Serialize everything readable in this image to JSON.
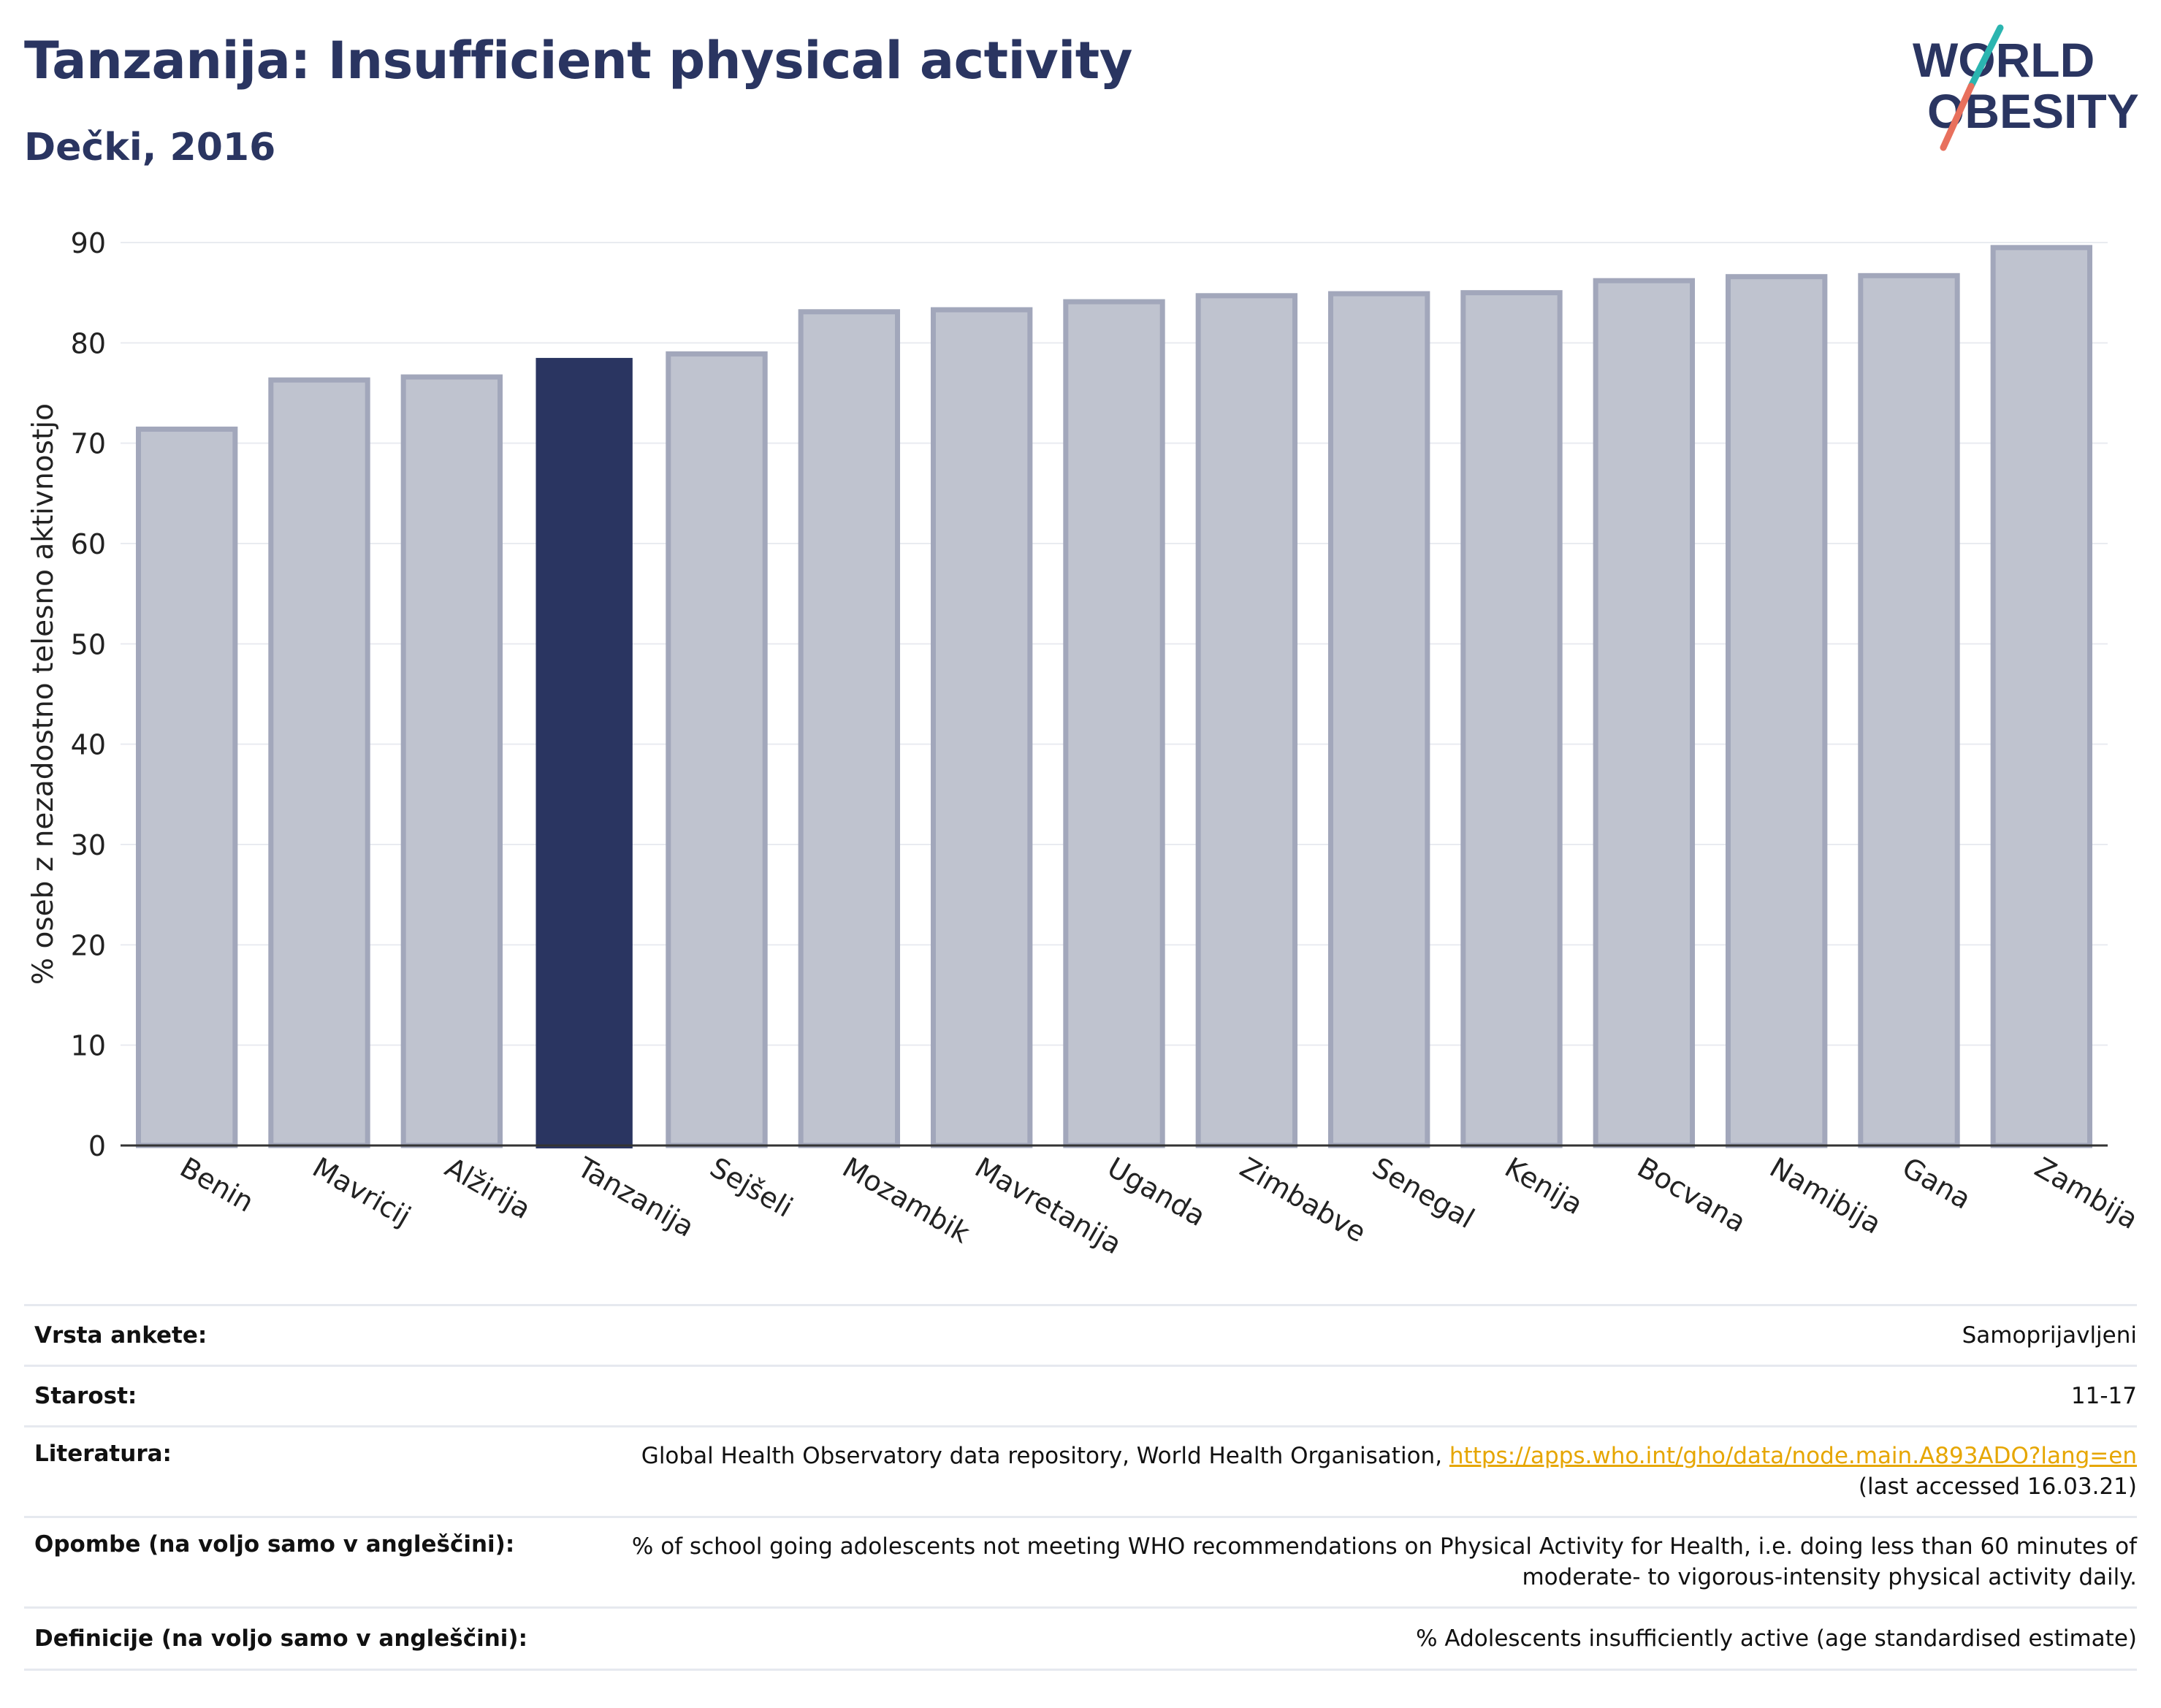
{
  "header": {
    "title": "Tanzanija: Insufficient physical activity",
    "subtitle": "Dečki, 2016"
  },
  "logo": {
    "line1": "WORLD",
    "line2": "OBESITY",
    "colors": {
      "text": "#2a3561",
      "slash_top": "#2bb5b0",
      "slash_bottom": "#e8705d"
    }
  },
  "colors": {
    "highlight": "#2a3561",
    "bar_fill": "#bfc3cf",
    "bar_stroke": "#a2a7bb",
    "grid": "#e9ebf0",
    "axis": "#333333"
  },
  "chart_data": {
    "type": "bar",
    "ylabel": "% oseb z nezadostno telesno aktivnostjo",
    "ylim": [
      0,
      90
    ],
    "yticks": [
      0,
      10,
      20,
      30,
      40,
      50,
      60,
      70,
      80,
      90
    ],
    "grid": true,
    "highlight": "Tanzanija",
    "categories": [
      "Benin",
      "Mavricij",
      "Alžirija",
      "Tanzanija",
      "Sejšeli",
      "Mozambik",
      "Mavretanija",
      "Uganda",
      "Zimbabve",
      "Senegal",
      "Kenija",
      "Bocvana",
      "Namibija",
      "Gana",
      "Zambija"
    ],
    "values": [
      71.4,
      76.3,
      76.6,
      78.5,
      78.9,
      83.1,
      83.3,
      84.1,
      84.7,
      84.9,
      85.0,
      86.2,
      86.6,
      86.7,
      89.5
    ]
  },
  "meta": {
    "survey_type": {
      "label": "Vrsta ankete:",
      "value": "Samoprijavljeni"
    },
    "age": {
      "label": "Starost:",
      "value": "11-17"
    },
    "references": {
      "label": "Literatura:",
      "text": "Global Health Observatory data repository, World Health Organisation,",
      "link": "https://apps.who.int/gho/data/node.main.A893ADO?lang=en",
      "accessed": "(last accessed 16.03.21)"
    },
    "notes": {
      "label": "Opombe (na voljo samo v angleščini):",
      "line1": "% of school going adolescents not meeting WHO recommendations on Physical Activity for Health, i.e. doing less than 60 minutes of",
      "line2": "moderate- to vigorous-intensity physical activity daily."
    },
    "definitions": {
      "label": "Definicije (na voljo samo v angleščini):",
      "value": "% Adolescents insufficiently active (age standardised estimate)"
    }
  }
}
